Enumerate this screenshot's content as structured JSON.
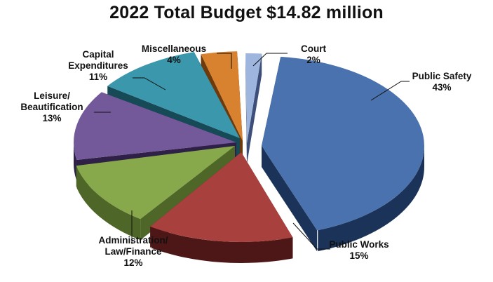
{
  "chart_data": {
    "type": "pie",
    "title": "2022 Total Budget $14.82 million",
    "exploded": true,
    "three_d": true,
    "slices": [
      {
        "label_lines": [
          "Public Safety"
        ],
        "percent_label": "43%",
        "value": 43,
        "color": "#4A72AE",
        "side_color": "#1B3358"
      },
      {
        "label_lines": [
          "Public Works"
        ],
        "percent_label": "15%",
        "value": 15,
        "color": "#A8413E",
        "side_color": "#4C1716"
      },
      {
        "label_lines": [
          "Administration/",
          "Law/Finance"
        ],
        "percent_label": "12%",
        "value": 12,
        "color": "#87A84B",
        "side_color": "#4E6627"
      },
      {
        "label_lines": [
          "Leisure/",
          "Beautification"
        ],
        "percent_label": "13%",
        "value": 13,
        "color": "#73599A",
        "side_color": "#2E2046"
      },
      {
        "label_lines": [
          "Capital",
          "Expenditures"
        ],
        "percent_label": "11%",
        "value": 11,
        "color": "#3A97AC",
        "side_color": "#164A56"
      },
      {
        "label_lines": [
          "Miscellaneous"
        ],
        "percent_label": "4%",
        "value": 4,
        "color": "#D8812E",
        "side_color": "#6E3A0C"
      },
      {
        "label_lines": [
          "Court"
        ],
        "percent_label": "2%",
        "value": 2,
        "color": "#9EB5DE",
        "side_color": "#3D4E78"
      }
    ],
    "legend": "none"
  }
}
